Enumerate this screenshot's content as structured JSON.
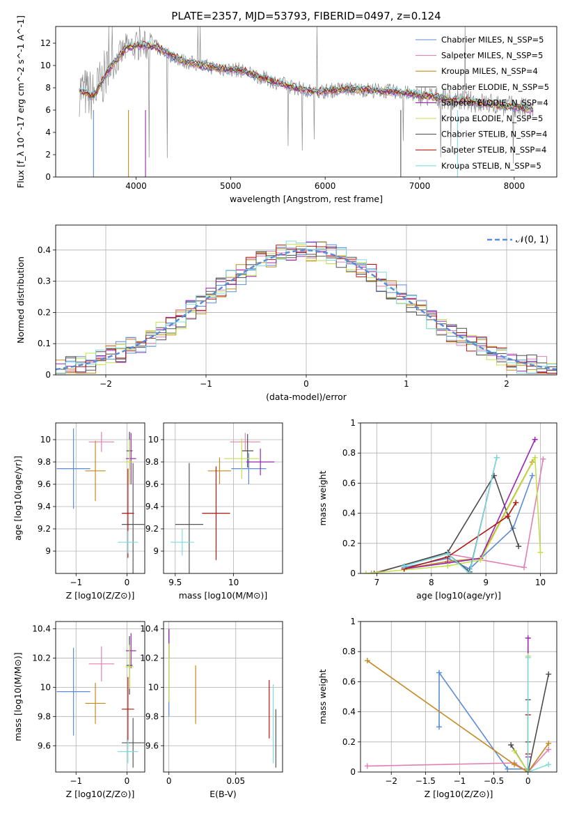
{
  "figure_title": "PLATE=2357, MJD=53793, FIBERID=0497, z=0.124",
  "models": [
    {
      "name": "Chabrier MILES",
      "nssp": "5",
      "color": "#5b8bd9"
    },
    {
      "name": "Salpeter MILES",
      "nssp": "5",
      "color": "#e37fb3"
    },
    {
      "name": "Kroupa MILES",
      "nssp": "4",
      "color": "#c48a1f"
    },
    {
      "name": "Chabrier ELODIE",
      "nssp": "5",
      "color": "#4a4a4a"
    },
    {
      "name": "Salpeter ELODIE",
      "nssp": "4",
      "color": "#9b24b4"
    },
    {
      "name": "Kroupa ELODIE",
      "nssp": "5",
      "color": "#c2df4a"
    },
    {
      "name": "Chabrier STELIB",
      "nssp": "4",
      "color": "#555555"
    },
    {
      "name": "Salpeter STELIB",
      "nssp": "4",
      "color": "#b0170f"
    },
    {
      "name": "Kroupa STELIB",
      "nssp": "5",
      "color": "#7fdbe0"
    }
  ],
  "chart_data": [
    {
      "type": "line",
      "id": "spectrum",
      "title": "PLATE=2357, MJD=53793, FIBERID=0497, z=0.124",
      "xlabel": "wavelength [Angstrom, rest frame]",
      "ylabel": "Flux [f_λ 10^-17 erg cm^-2 s^-1 A^-1]",
      "xlim": [
        3150,
        8450
      ],
      "ylim": [
        0,
        13.5
      ],
      "xticks": [
        4000,
        5000,
        6000,
        7000,
        8000
      ],
      "yticks": [
        0,
        2,
        4,
        6,
        8,
        10,
        12
      ],
      "grid": false,
      "legend": "top-right",
      "model_curve": {
        "x": [
          3400,
          3550,
          3700,
          3900,
          4050,
          4200,
          4350,
          4500,
          4700,
          4900,
          5100,
          5300,
          5600,
          5900,
          6200,
          6500,
          6800,
          7100,
          7400,
          7700,
          8000,
          8200
        ],
        "y": [
          7.8,
          7.2,
          9.5,
          11.6,
          11.8,
          11.7,
          11.0,
          10.4,
          10.0,
          9.7,
          9.6,
          9.0,
          8.2,
          7.6,
          7.9,
          7.8,
          7.6,
          7.2,
          6.9,
          6.6,
          6.3,
          6.0
        ]
      }
    },
    {
      "type": "line",
      "id": "residuals",
      "xlabel": "(data-model)/error",
      "ylabel": "Normed distribution",
      "xlim": [
        -2.5,
        2.5
      ],
      "ylim": [
        0,
        0.48
      ],
      "xticks": [
        -2,
        -1,
        0,
        1,
        2
      ],
      "yticks": [
        0.0,
        0.1,
        0.2,
        0.3,
        0.4
      ],
      "grid": true,
      "legend": "top-right",
      "reference_label": "𝒩(0, 1)",
      "reference_color": "#5b8bd9"
    },
    {
      "type": "scatter",
      "id": "age-vs-Z",
      "xlabel": "Z [log10(Z/Z⊙)]",
      "ylabel": "age  [log10(age/yr)]",
      "xlim": [
        -1.4,
        0.35
      ],
      "ylim": [
        8.8,
        10.15
      ],
      "xticks": [
        -1,
        0
      ],
      "yticks": [
        9.0,
        9.2,
        9.4,
        9.6,
        9.8,
        10.0
      ],
      "grid": true,
      "points": [
        {
          "x": -1.05,
          "y": 9.74,
          "xerr": 0.33,
          "yerr": 0.36
        },
        {
          "x": -0.5,
          "y": 9.98,
          "xerr": 0.25,
          "yerr": 0.09
        },
        {
          "x": -0.62,
          "y": 9.72,
          "xerr": 0.2,
          "yerr": 0.27
        },
        {
          "x": 0.05,
          "y": 9.9,
          "xerr": 0.06,
          "yerr": 0.17
        },
        {
          "x": 0.08,
          "y": 9.83,
          "xerr": 0.1,
          "yerr": 0.23
        },
        {
          "x": 0.05,
          "y": 9.8,
          "xerr": 0.08,
          "yerr": 0.2
        },
        {
          "x": 0.12,
          "y": 9.24,
          "xerr": 0.22,
          "yerr": 0.55
        },
        {
          "x": 0.02,
          "y": 9.34,
          "xerr": 0.12,
          "yerr": 0.4
        },
        {
          "x": 0.02,
          "y": 9.08,
          "xerr": 0.2,
          "yerr": 0.1
        }
      ]
    },
    {
      "type": "scatter",
      "id": "age-vs-mass",
      "xlabel": "mass [log10(M/M⊙)]",
      "ylabel": "",
      "xlim": [
        9.4,
        10.42
      ],
      "ylim": [
        8.8,
        10.15
      ],
      "xticks": [
        9.5,
        10.0
      ],
      "yticks": [
        9.0,
        9.2,
        9.4,
        9.6,
        9.8,
        10.0
      ],
      "grid": true,
      "points": [
        {
          "x": 10.13,
          "y": 9.74,
          "xerr": 0.15,
          "yerr": 0.14
        },
        {
          "x": 10.1,
          "y": 9.98,
          "xerr": 0.13,
          "yerr": 0.08
        },
        {
          "x": 9.88,
          "y": 9.72,
          "xerr": 0.1,
          "yerr": 0.12
        },
        {
          "x": 10.12,
          "y": 9.9,
          "xerr": 0.05,
          "yerr": 0.15
        },
        {
          "x": 10.23,
          "y": 9.8,
          "xerr": 0.12,
          "yerr": 0.12
        },
        {
          "x": 10.07,
          "y": 9.83,
          "xerr": 0.15,
          "yerr": 0.18
        },
        {
          "x": 9.62,
          "y": 9.24,
          "xerr": 0.12,
          "yerr": 0.55
        },
        {
          "x": 9.85,
          "y": 9.34,
          "xerr": 0.12,
          "yerr": 0.42
        },
        {
          "x": 9.56,
          "y": 9.08,
          "xerr": 0.1,
          "yerr": 0.12
        }
      ]
    },
    {
      "type": "line",
      "id": "mass-weight-vs-age",
      "xlabel": "age  [log10(age/yr)]",
      "ylabel": "mass weight",
      "xlim": [
        6.7,
        10.3
      ],
      "ylim": [
        0,
        1.0
      ],
      "xticks": [
        7,
        8,
        9,
        10
      ],
      "yticks": [
        0.0,
        0.2,
        0.4,
        0.6,
        0.8,
        1.0
      ],
      "grid": true,
      "series": [
        {
          "x": [
            7.5,
            8.3,
            8.7,
            9.5,
            9.85
          ],
          "y": [
            0.04,
            0.1,
            0.03,
            0.3,
            0.65
          ]
        },
        {
          "x": [
            6.9,
            8.3,
            9.7,
            10.05
          ],
          "y": [
            0.0,
            0.13,
            0.04,
            0.76
          ]
        },
        {
          "x": [
            7.5,
            8.3,
            8.9,
            9.85
          ],
          "y": [
            0.03,
            0.08,
            0.1,
            0.74
          ]
        },
        {
          "x": [
            6.95,
            8.3,
            9.15,
            9.6
          ],
          "y": [
            0.0,
            0.14,
            0.65,
            0.18
          ]
        },
        {
          "x": [
            7.5,
            8.3,
            8.9,
            9.9
          ],
          "y": [
            0.03,
            0.07,
            0.1,
            0.89
          ]
        },
        {
          "x": [
            6.8,
            8.3,
            8.9,
            9.9,
            10.0
          ],
          "y": [
            0.0,
            0.05,
            0.09,
            0.77,
            0.14
          ]
        },
        {
          "x": [
            8.3,
            8.7,
            9.2
          ],
          "y": [
            0.13,
            0.01,
            0.77
          ]
        },
        {
          "x": [
            7.5,
            8.3,
            9.4,
            9.55
          ],
          "y": [
            0.03,
            0.11,
            0.38,
            0.47
          ]
        },
        {
          "x": [
            7.5,
            8.3,
            8.7,
            9.2
          ],
          "y": [
            0.05,
            0.13,
            0.0,
            0.77
          ]
        }
      ]
    },
    {
      "type": "scatter",
      "id": "mass-vs-Z",
      "xlabel": "Z [log10(Z/Z⊙)]",
      "ylabel": "mass [log10(M/M⊙)]",
      "xlim": [
        -1.4,
        0.35
      ],
      "ylim": [
        9.42,
        10.45
      ],
      "xticks": [
        -1,
        0
      ],
      "yticks": [
        9.6,
        9.8,
        10.0,
        10.2,
        10.4
      ],
      "grid": true,
      "points": [
        {
          "x": -1.05,
          "y": 9.97,
          "xerr": 0.33,
          "yerr": 0.3
        },
        {
          "x": -0.5,
          "y": 10.16,
          "xerr": 0.25,
          "yerr": 0.12
        },
        {
          "x": -0.62,
          "y": 9.89,
          "xerr": 0.2,
          "yerr": 0.14
        },
        {
          "x": 0.05,
          "y": 10.15,
          "xerr": 0.06,
          "yerr": 0.2
        },
        {
          "x": 0.08,
          "y": 10.25,
          "xerr": 0.1,
          "yerr": 0.12
        },
        {
          "x": 0.05,
          "y": 10.14,
          "xerr": 0.08,
          "yerr": 0.15
        },
        {
          "x": 0.12,
          "y": 9.62,
          "xerr": 0.22,
          "yerr": 0.17
        },
        {
          "x": 0.02,
          "y": 9.85,
          "xerr": 0.12,
          "yerr": 0.22
        },
        {
          "x": 0.02,
          "y": 9.56,
          "xerr": 0.2,
          "yerr": 0.08
        }
      ]
    },
    {
      "type": "scatter",
      "id": "mass-vs-ebv",
      "xlabel": "E(B-V)",
      "ylabel": "",
      "xlim": [
        -0.004,
        0.085
      ],
      "ylim": [
        9.42,
        10.45
      ],
      "xticks": [
        0.0,
        0.05
      ],
      "yticks": [
        9.6,
        9.8,
        10.0,
        10.2,
        10.4
      ],
      "grid": true,
      "points": [
        {
          "x": 0.0,
          "y": 10.0,
          "yerr": 0.2
        },
        {
          "x": 0.0,
          "y": 10.2,
          "yerr": 0.15
        },
        {
          "x": 0.02,
          "y": 9.95,
          "yerr": 0.2
        },
        {
          "x": 0.0,
          "y": 10.3,
          "yerr": 0.1
        },
        {
          "x": 0.0,
          "y": 10.3,
          "yerr": 0.1
        },
        {
          "x": 0.0,
          "y": 10.1,
          "yerr": 0.2
        },
        {
          "x": 0.08,
          "y": 9.65,
          "yerr": 0.2
        },
        {
          "x": 0.075,
          "y": 9.85,
          "yerr": 0.2
        },
        {
          "x": 0.078,
          "y": 9.75,
          "yerr": 0.27
        }
      ]
    },
    {
      "type": "line",
      "id": "mass-weight-vs-Z",
      "xlabel": "Z [log10(Z/Z⊙)]",
      "ylabel": "mass weight",
      "xlim": [
        -2.45,
        0.42
      ],
      "ylim": [
        0,
        1.0
      ],
      "xticks": [
        -2.0,
        -1.5,
        -1.0,
        -0.5,
        0.0
      ],
      "yticks": [
        0.0,
        0.2,
        0.4,
        0.6,
        0.8,
        1.0
      ],
      "grid": true,
      "series": [
        {
          "x": [
            -1.3,
            -1.3,
            -0.3,
            0.0
          ],
          "y": [
            0.3,
            0.66,
            0.02,
            0.02
          ]
        },
        {
          "x": [
            -2.35,
            -0.2,
            0.0,
            0.3
          ],
          "y": [
            0.04,
            0.06,
            0.0,
            0.15
          ]
        },
        {
          "x": [
            -2.35,
            -0.2,
            0.0,
            0.3
          ],
          "y": [
            0.74,
            0.05,
            0.0,
            0.19
          ]
        },
        {
          "x": [
            -0.25,
            0.0,
            0.3
          ],
          "y": [
            0.18,
            0.0,
            0.65
          ]
        },
        {
          "x": [
            0.0,
            0.0,
            0.0
          ],
          "y": [
            0.89,
            0.0,
            0.1
          ]
        },
        {
          "x": [
            -0.2,
            0.0,
            0.0
          ],
          "y": [
            0.14,
            0.0,
            0.77
          ]
        },
        {
          "x": [
            0.0,
            0.0,
            0.0
          ],
          "y": [
            0.48,
            0.0,
            0.2
          ]
        },
        {
          "x": [
            0.0,
            0.0,
            0.0
          ],
          "y": [
            0.38,
            0.0,
            0.12
          ]
        },
        {
          "x": [
            0.0,
            0.0,
            0.3
          ],
          "y": [
            0.76,
            0.0,
            0.05
          ]
        }
      ]
    }
  ]
}
